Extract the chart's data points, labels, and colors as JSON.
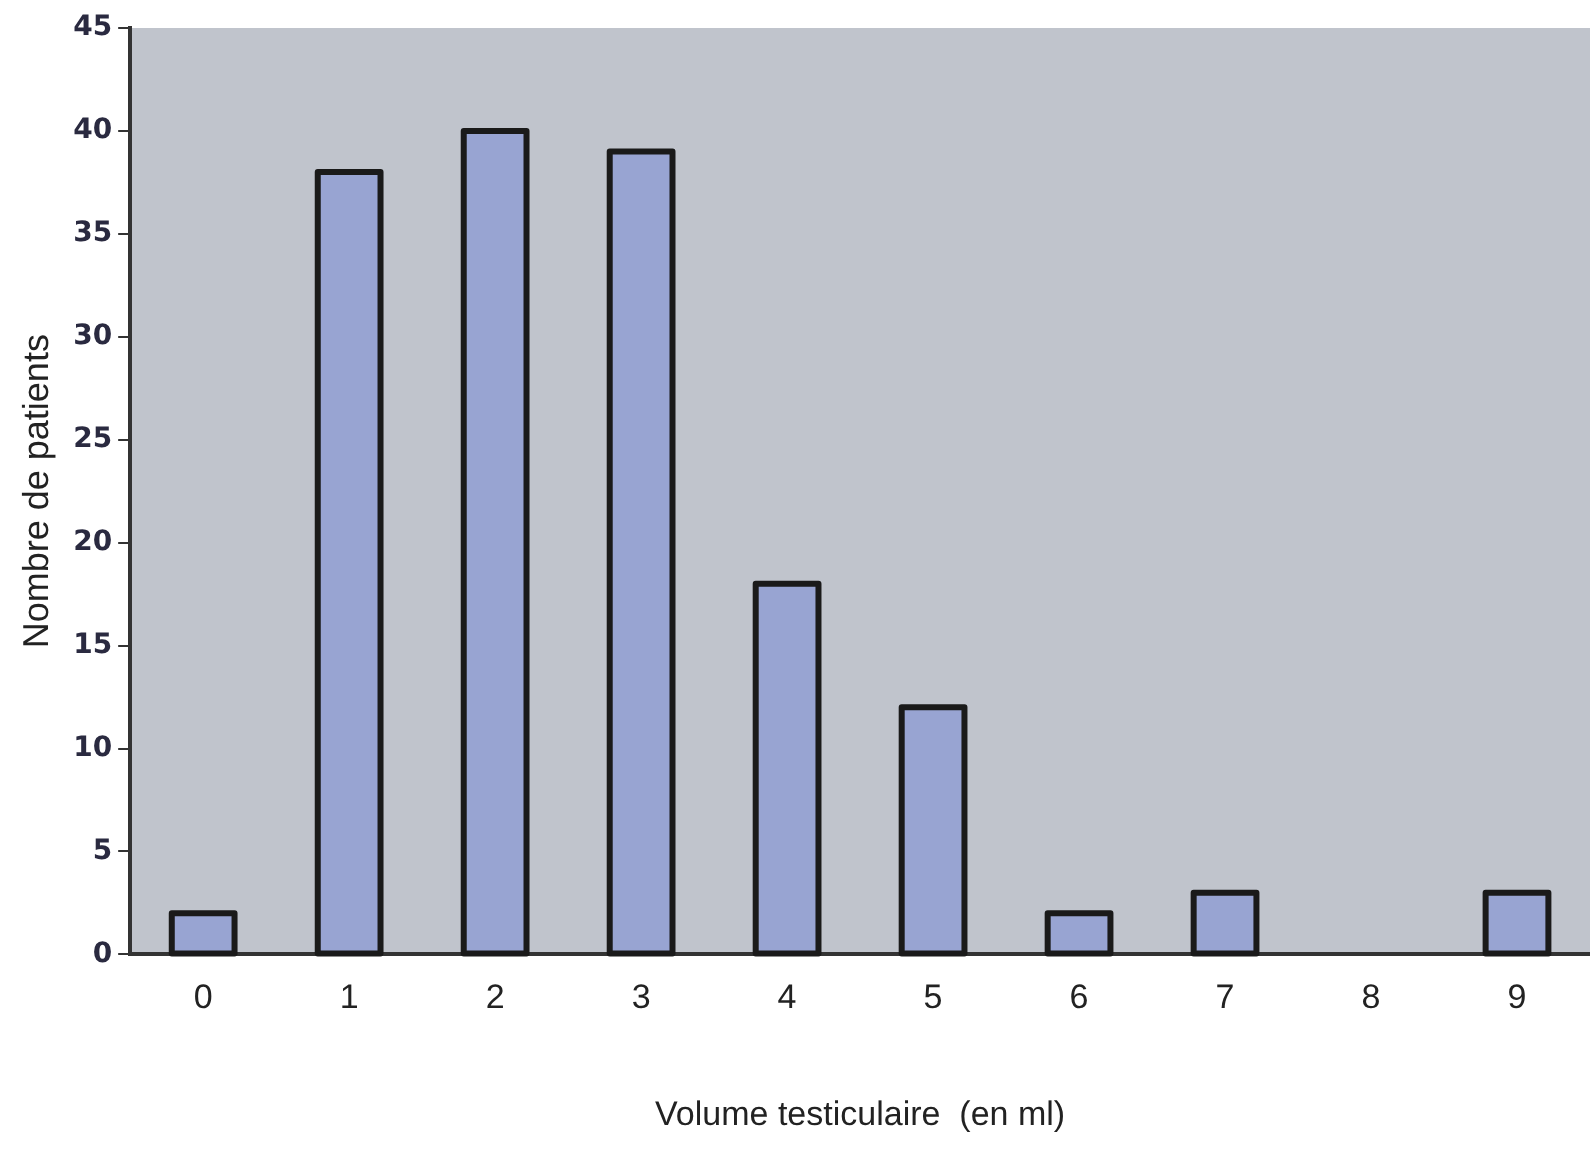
{
  "chart_data": {
    "type": "bar",
    "xlabel": "Volume testiculaire  (en ml)",
    "ylabel": "Nombre de patients",
    "categories": [
      "0",
      "1",
      "2",
      "3",
      "4",
      "5",
      "6",
      "7",
      "8",
      "9"
    ],
    "values": [
      2,
      38,
      40,
      39,
      18,
      12,
      2,
      3,
      0,
      3
    ],
    "color": "#98a4d2",
    "ylim": [
      0,
      45
    ],
    "yticks": [
      0,
      5,
      10,
      15,
      20,
      25,
      30,
      35,
      40,
      45
    ],
    "grid": false,
    "legend": false
  }
}
